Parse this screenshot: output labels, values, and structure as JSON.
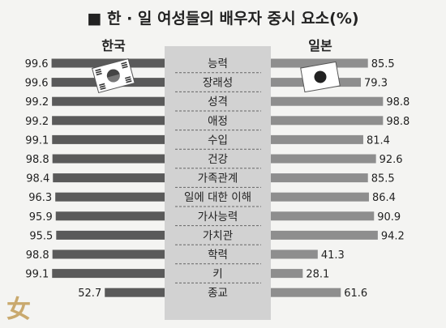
{
  "title": "■ 한 · 일 여성들의 배우자 중시 요소(%)",
  "chart_data": {
    "type": "bar",
    "title": "■ 한 · 일 여성들의 배우자 중시 요소(%)",
    "categories": [
      "능력",
      "장래성",
      "성격",
      "애정",
      "수입",
      "건강",
      "가족관계",
      "일에 대한 이해",
      "가사능력",
      "가치관",
      "학력",
      "키",
      "종교"
    ],
    "series": [
      {
        "name": "한국",
        "values": [
          99.6,
          99.6,
          99.2,
          99.2,
          99.1,
          98.8,
          98.4,
          96.3,
          95.9,
          95.5,
          98.8,
          99.1,
          52.7
        ]
      },
      {
        "name": "일본",
        "values": [
          85.5,
          79.3,
          98.8,
          98.8,
          81.4,
          92.6,
          85.5,
          86.4,
          90.9,
          94.2,
          41.3,
          28.1,
          61.6
        ]
      }
    ],
    "value_labels": {
      "korea": [
        "99.6",
        "99.6",
        "99.2",
        "99.2",
        "99.1",
        "98.8",
        "98.4",
        "96.3",
        "95.9",
        "95.5",
        "98.8",
        "99.1",
        "52.7"
      ],
      "japan": [
        "85.5",
        "79.3",
        "98.8",
        "98.8",
        "81.4",
        "92.6",
        "85.5",
        "86.4",
        "90.9",
        "94.2",
        "41.3",
        "28.1",
        "61.6"
      ]
    },
    "layout": "back-to-back horizontal bars",
    "ylim": [
      0,
      100
    ],
    "colors": {
      "korea": "#5a5a5a",
      "japan": "#8e8e8e",
      "center_panel": "#d2d2d2"
    }
  },
  "logo_text": "女"
}
